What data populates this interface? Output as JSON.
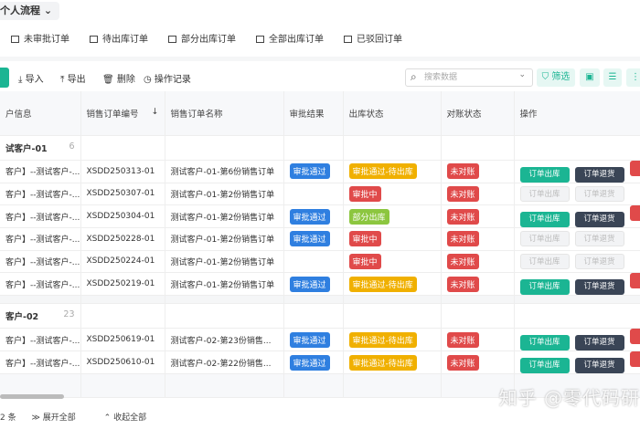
{
  "title": "个人流程",
  "tabs": [
    "未审批订单",
    "待出库订单",
    "部分出库订单",
    "全部出库订单",
    "已驳回订单"
  ],
  "toolbar": {
    "import": "导入",
    "export": "导出",
    "delete": "删除",
    "log": "操作记录",
    "search_placeholder": "搜索数据",
    "filter": "筛选"
  },
  "columns": [
    "户信息",
    "销售订单编号",
    "销售订单名称",
    "审批结果",
    "出库状态",
    "对账状态",
    "操作"
  ],
  "actions": {
    "out": "订单出库",
    "ret": "订单退货"
  },
  "groups": [
    {
      "name": "试客户-01",
      "count": "6",
      "rows": [
        {
          "cust": "客户】--测试客户-...",
          "no": "XSDD250313-01",
          "name": "测试客户-01-第6份销售订单",
          "appr": "审批通过",
          "out": "审批通过-待出库",
          "outc": "y",
          "rec": "未对账",
          "enabled": true
        },
        {
          "cust": "客户】--测试客户-...",
          "no": "XSDD250307-01",
          "name": "测试客户-01-第2份销售订单",
          "appr": "",
          "out": "审批中",
          "outc": "r",
          "rec": "未对账",
          "enabled": false
        },
        {
          "cust": "客户】--测试客户-...",
          "no": "XSDD250304-01",
          "name": "测试客户-01-第2份销售订单",
          "appr": "审批通过",
          "out": "部分出库",
          "outc": "g",
          "rec": "未对账",
          "enabled": true
        },
        {
          "cust": "客户】--测试客户-...",
          "no": "XSDD250228-01",
          "name": "测试客户-01-第2份销售订单",
          "appr": "审批通过",
          "out": "审批中",
          "outc": "r",
          "rec": "未对账",
          "enabled": false
        },
        {
          "cust": "客户】--测试客户-...",
          "no": "XSDD250224-01",
          "name": "测试客户-01-第2份销售订单",
          "appr": "",
          "out": "审批中",
          "outc": "r",
          "rec": "未对账",
          "enabled": false
        },
        {
          "cust": "客户】--测试客户-...",
          "no": "XSDD250219-01",
          "name": "测试客户-01-第2份销售订单",
          "appr": "审批通过",
          "out": "审批通过-待出库",
          "outc": "y",
          "rec": "未对账",
          "enabled": true
        }
      ]
    },
    {
      "name": "客户-02",
      "count": "23",
      "rows": [
        {
          "cust": "客户】--测试客户-...",
          "no": "XSDD250619-01",
          "name": "测试客户-02-第23份销售...",
          "appr": "审批通过",
          "out": "审批通过-待出库",
          "outc": "y",
          "rec": "未对账",
          "enabled": true
        },
        {
          "cust": "客户】--测试客户-...",
          "no": "XSDD250610-01",
          "name": "测试客户-02-第22份销售...",
          "appr": "审批通过",
          "out": "审批通过-待出库",
          "outc": "y",
          "rec": "未对账",
          "enabled": true
        }
      ]
    }
  ],
  "footer": {
    "count": "2 条",
    "expand": "展开全部",
    "collapse": "收起全部"
  },
  "watermark": "知乎 @零代码研"
}
